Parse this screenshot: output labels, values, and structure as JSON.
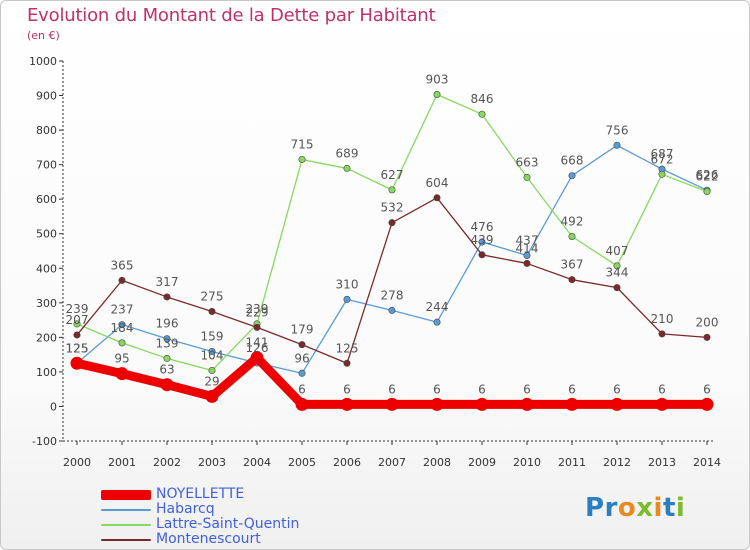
{
  "title": "Evolution du Montant de la Dette par Habitant",
  "subtitle": "(en €)",
  "logo": {
    "text": "Proxiti",
    "colors": [
      "#2a7fc0",
      "#2a7fc0",
      "#e98a1f",
      "#7cbb2b",
      "#e98a1f",
      "#2a7fc0",
      "#7cbb2b"
    ]
  },
  "chart_data": {
    "type": "line",
    "title": "Evolution du Montant de la Dette par Habitant",
    "ylabel": "(en €)",
    "xlabel": "",
    "x": [
      "2000",
      "2001",
      "2002",
      "2003",
      "2004",
      "2005",
      "2006",
      "2007",
      "2008",
      "2009",
      "2010",
      "2011",
      "2012",
      "2013",
      "2014"
    ],
    "ylim": [
      -100,
      1000
    ],
    "yticks": [
      -100,
      0,
      100,
      200,
      300,
      400,
      500,
      600,
      700,
      800,
      900,
      1000
    ],
    "grid": false,
    "legend": "bottom-left",
    "series": [
      {
        "name": "NOYELLETTE",
        "color": "#ee0000",
        "values": [
          125,
          95,
          63,
          29,
          141,
          6,
          6,
          6,
          6,
          6,
          6,
          6,
          6,
          6,
          6
        ]
      },
      {
        "name": "Habarcq",
        "color": "#5b9bd5",
        "values": [
          125,
          237,
          196,
          159,
          126,
          96,
          310,
          278,
          244,
          476,
          437,
          668,
          756,
          687,
          626
        ]
      },
      {
        "name": "Lattre-Saint-Quentin",
        "color": "#88d860",
        "values": [
          239,
          184,
          139,
          104,
          239,
          715,
          689,
          627,
          903,
          846,
          663,
          492,
          407,
          672,
          622
        ]
      },
      {
        "name": "Montenescourt",
        "color": "#7a2a2a",
        "values": [
          207,
          365,
          317,
          275,
          229,
          179,
          125,
          532,
          604,
          439,
          414,
          367,
          344,
          210,
          200
        ]
      }
    ]
  }
}
